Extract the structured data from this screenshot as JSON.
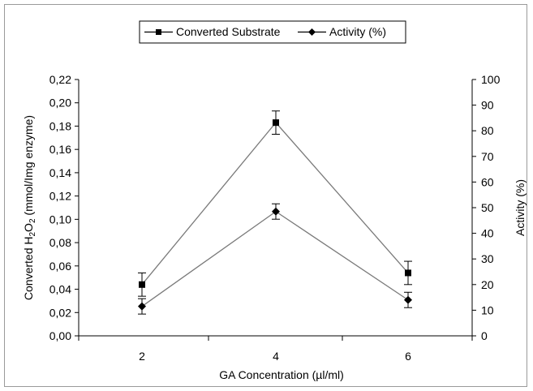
{
  "chart_data": {
    "type": "line",
    "x": [
      2,
      4,
      6
    ],
    "x_ticks": [
      "2",
      "4",
      "6"
    ],
    "xlabel": "GA Concentration (µl/ml)",
    "ylabel_left": "Converted H2O2  (mmol/Img enzyme)",
    "ylabel_right": "Activity (%)",
    "ylim_left": [
      0,
      0.22
    ],
    "ylim_right": [
      0,
      100
    ],
    "left_ticks": [
      "0,00",
      "0,02",
      "0,04",
      "0,06",
      "0,08",
      "0,10",
      "0,12",
      "0,14",
      "0,16",
      "0,18",
      "0,20",
      "0,22"
    ],
    "right_ticks": [
      "0",
      "10",
      "20",
      "30",
      "40",
      "50",
      "60",
      "70",
      "80",
      "90",
      "100"
    ],
    "legend_position": "top-center",
    "series": [
      {
        "name": "Converted Substrate",
        "axis": "left",
        "marker": "square",
        "values": [
          0.044,
          0.183,
          0.054
        ],
        "error": [
          0.01,
          0.01,
          0.01
        ]
      },
      {
        "name": "Activity (%)",
        "axis": "right",
        "marker": "diamond",
        "values": [
          11.5,
          48.5,
          14
        ],
        "error": [
          3,
          3,
          3
        ]
      }
    ],
    "colors": {
      "line": "#7a7a7a",
      "marker": "#000000",
      "axis": "#000000"
    }
  }
}
